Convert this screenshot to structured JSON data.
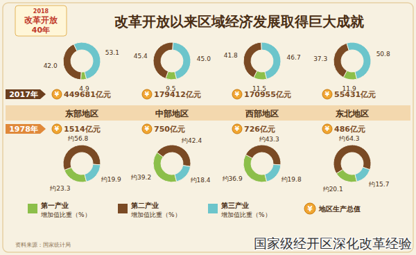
{
  "chart_data": {
    "type": "donut",
    "title": "改革开放以来区域经济发展取得巨大成就",
    "badge": [
      "2018",
      "改革开放",
      "40年"
    ],
    "regions": [
      "东部地区",
      "中部地区",
      "西部地区",
      "东北地区"
    ],
    "categories": [
      "第一产业",
      "第二产业",
      "第三产业"
    ],
    "category_suffix": "增加值比重（%）",
    "colors": [
      "#8cbf4a",
      "#7a4a24",
      "#6cc5cb"
    ],
    "gdp_legend": "地区生产总值",
    "currency_symbol": "¥",
    "data_labels": true,
    "panels": [
      {
        "year": "2017年",
        "gdp_labels": [
          "449681亿元",
          "179412亿元",
          "170955亿元",
          "55431亿元"
        ],
        "values": [
          [
            4.9,
            42.0,
            53.1
          ],
          [
            9.5,
            45.4,
            45.0
          ],
          [
            11.5,
            41.8,
            46.7
          ],
          [
            11.9,
            37.3,
            50.8
          ]
        ],
        "value_labels": [
          [
            "4.9",
            "42.0",
            "53.1"
          ],
          [
            "9.5",
            "45.4",
            "45.0"
          ],
          [
            "11.5",
            "41.8",
            "46.7"
          ],
          [
            "11.9",
            "37.3",
            "50.8"
          ]
        ]
      },
      {
        "year": "1978年",
        "gdp_labels": [
          "1514亿元",
          "750亿元",
          "726亿元",
          "486亿元"
        ],
        "values": [
          [
            23.3,
            56.8,
            19.9
          ],
          [
            39.2,
            42.4,
            18.4
          ],
          [
            36.9,
            43.3,
            19.8
          ],
          [
            20.1,
            64.3,
            15.7
          ]
        ],
        "value_labels": [
          [
            "约23.3",
            "约56.8",
            "约19.9"
          ],
          [
            "约39.2",
            "约42.4",
            "约18.4"
          ],
          [
            "约36.9",
            "约43.3",
            "约19.8"
          ],
          [
            "约20.1",
            "约64.3",
            "约15.7"
          ]
        ]
      }
    ],
    "source": "资料来源：国家统计局",
    "watermark": "国家级经开区深化改革经验"
  }
}
